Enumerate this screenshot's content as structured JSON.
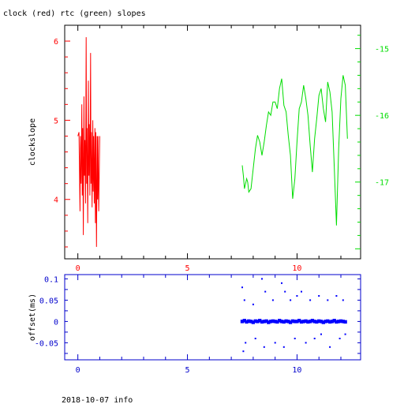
{
  "chart_data": [
    {
      "type": "line",
      "title": "clock (red) rtc (green) slopes",
      "ylabel": "clockslope",
      "xlim": [
        -0.6,
        12.9
      ],
      "ylim": [
        3.25,
        6.2
      ],
      "y2lim": [
        -18.15,
        -14.65
      ],
      "x_ticks": [
        "0",
        "5",
        "10"
      ],
      "y_ticks": [
        "4",
        "5",
        "6"
      ],
      "y2_ticks": [
        "-15",
        "-16",
        "-17"
      ],
      "colors": {
        "clock": "#ff0000",
        "rtc": "#00dd00",
        "axes": "#000000"
      },
      "series": [
        {
          "axis": "left",
          "x": [
            0.0,
            0.05,
            0.1,
            0.12,
            0.15,
            0.18,
            0.2,
            0.22,
            0.25,
            0.28,
            0.3,
            0.32,
            0.35,
            0.38,
            0.4,
            0.42,
            0.45,
            0.48,
            0.5,
            0.52,
            0.55,
            0.58,
            0.6,
            0.62,
            0.65,
            0.68,
            0.7,
            0.72,
            0.75,
            0.78,
            0.8,
            0.82,
            0.85,
            0.88,
            0.9,
            0.92,
            0.95,
            1.0
          ],
          "values": [
            4.8,
            4.85,
            3.85,
            4.8,
            4.2,
            5.2,
            4.05,
            4.9,
            3.55,
            5.3,
            4.3,
            4.75,
            3.95,
            6.05,
            4.2,
            4.9,
            3.7,
            5.5,
            4.3,
            4.95,
            4.05,
            5.85,
            4.2,
            4.85,
            3.9,
            5.0,
            4.1,
            4.8,
            3.95,
            4.9,
            3.7,
            4.85,
            3.4,
            4.8,
            4.0,
            4.8,
            3.85,
            4.8
          ]
        },
        {
          "axis": "right",
          "x": [
            7.5,
            7.55,
            7.6,
            7.7,
            7.75,
            7.8,
            7.9,
            8.0,
            8.1,
            8.2,
            8.3,
            8.4,
            8.5,
            8.6,
            8.7,
            8.8,
            8.9,
            9.0,
            9.1,
            9.2,
            9.3,
            9.4,
            9.5,
            9.6,
            9.7,
            9.8,
            9.9,
            10.0,
            10.1,
            10.2,
            10.3,
            10.4,
            10.5,
            10.6,
            10.7,
            10.8,
            10.9,
            11.0,
            11.1,
            11.2,
            11.3,
            11.4,
            11.5,
            11.6,
            11.7,
            11.8,
            11.9,
            12.0,
            12.1,
            12.2,
            12.3
          ],
          "values": [
            -16.75,
            -16.9,
            -17.1,
            -16.95,
            -17.0,
            -17.15,
            -17.1,
            -16.8,
            -16.5,
            -16.3,
            -16.4,
            -16.6,
            -16.4,
            -16.15,
            -15.95,
            -16.0,
            -15.8,
            -15.8,
            -15.9,
            -15.6,
            -15.45,
            -15.85,
            -15.95,
            -16.3,
            -16.6,
            -17.25,
            -16.95,
            -16.4,
            -15.9,
            -15.8,
            -15.55,
            -15.75,
            -16.0,
            -16.45,
            -16.85,
            -16.35,
            -16.05,
            -15.7,
            -15.6,
            -15.9,
            -16.1,
            -15.5,
            -15.65,
            -15.95,
            -16.8,
            -17.65,
            -16.5,
            -15.75,
            -15.4,
            -15.55,
            -16.35
          ]
        }
      ]
    },
    {
      "type": "scatter",
      "ylabel": "offset(ms)",
      "xlim": [
        -0.6,
        12.9
      ],
      "ylim": [
        -0.09,
        0.11
      ],
      "x_ticks": [
        "0",
        "5",
        "10"
      ],
      "y_ticks": [
        "0.1",
        "0.05",
        "0",
        "-0.05"
      ],
      "colors": {
        "points": "#0000ff",
        "axes": "#0000cc"
      },
      "series": [
        {
          "x": [
            7.5,
            7.6,
            7.7,
            7.8,
            7.9,
            8.0,
            8.1,
            8.2,
            8.3,
            8.4,
            8.5,
            8.6,
            8.7,
            8.8,
            8.9,
            9.0,
            9.1,
            9.2,
            9.3,
            9.4,
            9.5,
            9.6,
            9.7,
            9.8,
            9.9,
            10.0,
            10.1,
            10.2,
            10.3,
            10.4,
            10.5,
            10.6,
            10.7,
            10.8,
            10.9,
            11.0,
            11.1,
            11.2,
            11.3,
            11.4,
            11.5,
            11.6,
            11.7,
            11.8,
            11.9,
            12.0,
            12.1,
            12.2
          ],
          "values": [
            0.0,
            0.002,
            -0.001,
            0.001,
            0.0,
            -0.002,
            0.001,
            0.0,
            0.002,
            -0.001,
            0.0,
            0.001,
            -0.002,
            0.0,
            0.001,
            0.0,
            -0.001,
            0.002,
            0.0,
            -0.001,
            0.001,
            0.0,
            -0.002,
            0.001,
            0.0,
            0.0,
            0.002,
            -0.001,
            0.0,
            0.001,
            -0.001,
            0.0,
            0.002,
            0.0,
            -0.001,
            0.001,
            0.0,
            -0.002,
            0.0,
            0.001,
            -0.001,
            0.0,
            0.002,
            -0.001,
            0.0,
            0.001,
            0.0,
            -0.001
          ]
        },
        {
          "x": [
            7.5,
            7.55,
            7.6,
            7.65,
            8.0,
            8.1,
            8.4,
            8.5,
            8.55,
            8.9,
            9.0,
            9.3,
            9.4,
            9.45,
            9.7,
            9.9,
            10.0,
            10.2,
            10.4,
            10.6,
            10.8,
            11.0,
            11.1,
            11.4,
            11.5,
            11.8,
            11.95,
            12.1,
            12.2
          ],
          "values": [
            0.08,
            -0.07,
            0.05,
            -0.05,
            0.04,
            -0.04,
            0.1,
            -0.06,
            0.07,
            0.05,
            -0.05,
            0.09,
            -0.06,
            0.07,
            0.05,
            -0.04,
            0.06,
            0.07,
            -0.05,
            0.05,
            -0.04,
            0.06,
            -0.03,
            0.05,
            -0.06,
            0.06,
            -0.04,
            0.05,
            -0.03
          ]
        }
      ]
    }
  ],
  "footer": {
    "text": "2018-10-07 info"
  }
}
